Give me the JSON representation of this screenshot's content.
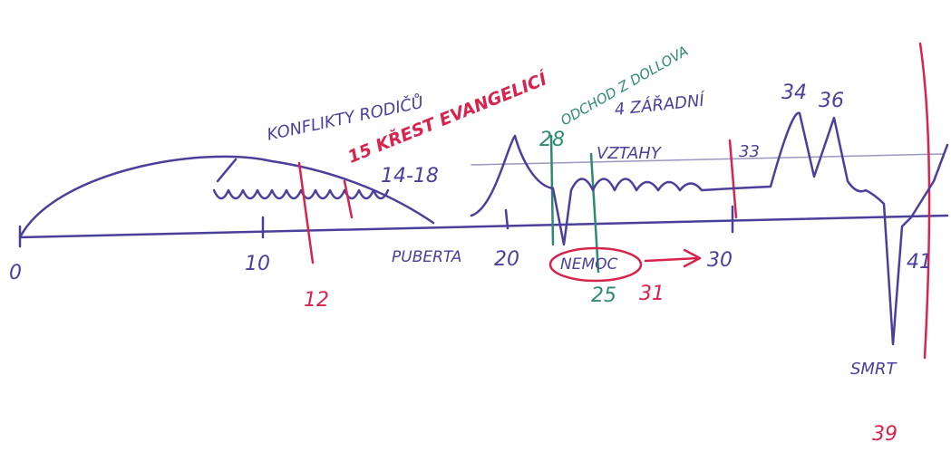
{
  "sketch": {
    "axis_labels": [
      "0",
      "10",
      "12",
      "20",
      "25",
      "31",
      "30",
      "41",
      "39"
    ],
    "peak_labels": [
      "28",
      "33",
      "34",
      "36"
    ],
    "phases": [
      "KONFLIKTY RODIČŮ",
      "15 KŘEST EVANGELICÍ",
      "ODCHOD Z DOLLOVA",
      "4 ZÁŘADNÍ",
      "VZTAHY",
      "14-18",
      "PUBERTA",
      "NEMOC",
      "SMRT"
    ]
  }
}
